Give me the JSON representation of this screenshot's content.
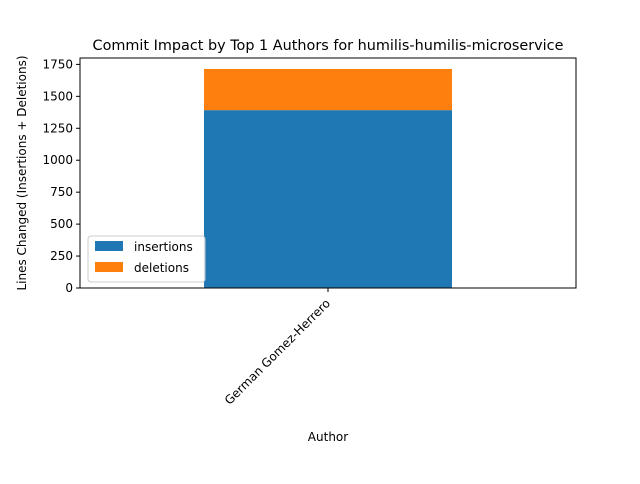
{
  "chart_data": {
    "type": "bar",
    "stacked": true,
    "title": "Commit Impact by Top 1 Authors for humilis-humilis-microservice",
    "xlabel": "Author",
    "ylabel": "Lines Changed (Insertions + Deletions)",
    "categories": [
      "German Gomez-Herrero"
    ],
    "series": [
      {
        "name": "insertions",
        "values": [
          1392
        ],
        "color": "#1f77b4"
      },
      {
        "name": "deletions",
        "values": [
          322
        ],
        "color": "#ff7f0e"
      }
    ],
    "ylim": [
      0,
      1800
    ],
    "yticks": [
      0,
      250,
      500,
      750,
      1000,
      1250,
      1500,
      1750
    ],
    "grid": false,
    "legend_position": "lower-left"
  }
}
